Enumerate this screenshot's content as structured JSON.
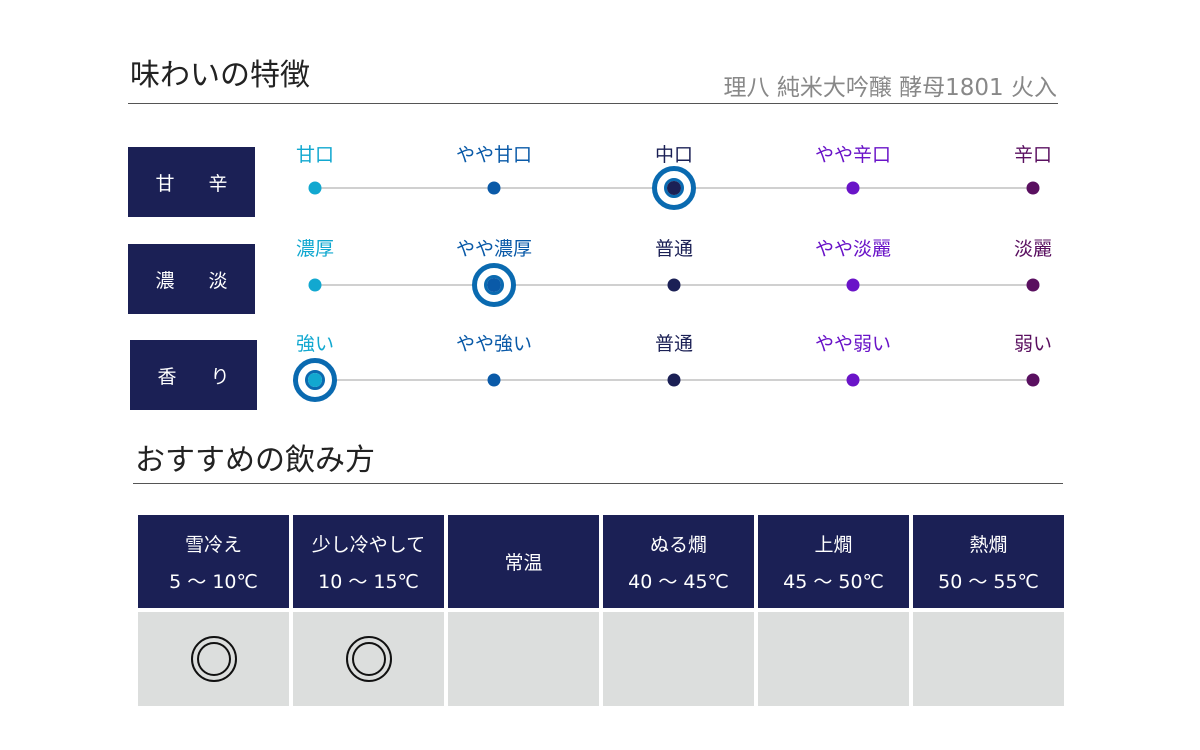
{
  "taste": {
    "title": "味わいの特徴",
    "product": "理八 純米大吟醸 酵母1801 火入",
    "rows": [
      {
        "category": "甘 辛",
        "labels": [
          "甘口",
          "やや甘口",
          "中口",
          "やや辛口",
          "辛口"
        ],
        "selected": 2
      },
      {
        "category": "濃 淡",
        "labels": [
          "濃厚",
          "やや濃厚",
          "普通",
          "やや淡麗",
          "淡麗"
        ],
        "selected": 1
      },
      {
        "category": "香 り",
        "labels": [
          "強い",
          "やや強い",
          "普通",
          "やや弱い",
          "弱い"
        ],
        "selected": 0
      }
    ],
    "scale_colors": [
      "#12a8d0",
      "#0a5aa8",
      "#1b2055",
      "#6a14c8",
      "#5a1060"
    ]
  },
  "serving": {
    "title": "おすすめの飲み方",
    "columns": [
      {
        "name": "雪冷え",
        "temp": "5 ～ 10℃",
        "recommended": true
      },
      {
        "name": "少し冷やして",
        "temp": "10 ～ 15℃",
        "recommended": true
      },
      {
        "name": "常温",
        "temp": "",
        "recommended": false
      },
      {
        "name": "ぬる燗",
        "temp": "40 ～ 45℃",
        "recommended": false
      },
      {
        "name": "上燗",
        "temp": "45 ～ 50℃",
        "recommended": false
      },
      {
        "name": "熱燗",
        "temp": "50 ～ 55℃",
        "recommended": false
      }
    ],
    "mark": "◎"
  }
}
